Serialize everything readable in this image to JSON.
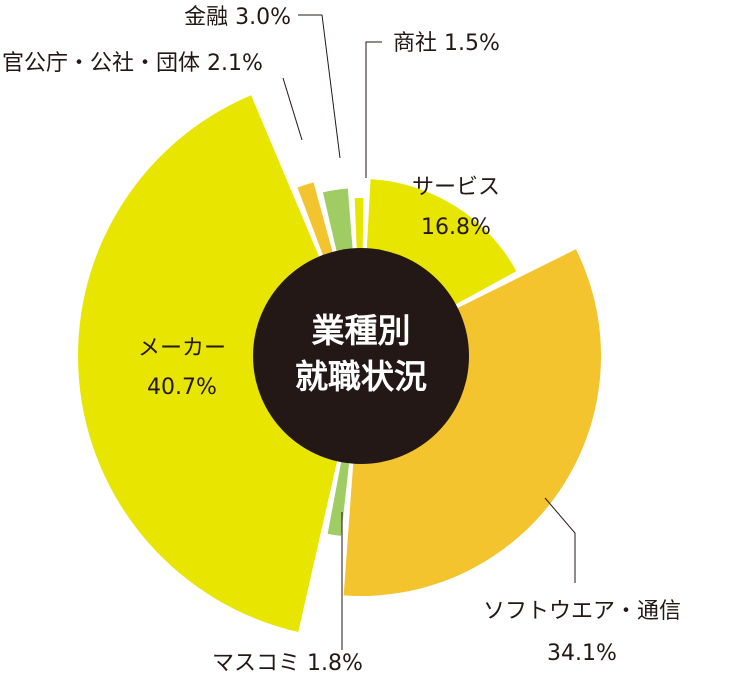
{
  "chart_data": {
    "type": "pie",
    "title": [
      "業種別",
      "就職状況"
    ],
    "slices": [
      {
        "name": "サービス",
        "value": 16.8,
        "value_label": "16.8%",
        "color": "#e8e500",
        "radius": 177
      },
      {
        "name": "ソフトウエア・通信",
        "value": 34.1,
        "value_label": "34.1%",
        "color": "#f3c42e",
        "radius": 240
      },
      {
        "name": "マスコミ",
        "value": 1.8,
        "value_label": "1.8%",
        "color": "#9fcc63",
        "radius": 181
      },
      {
        "name": "メーカー",
        "value": 40.7,
        "value_label": "40.7%",
        "color": "#e8e500",
        "radius": 283
      },
      {
        "name": "官公庁・公社・団体",
        "value": 2.1,
        "value_label": "2.1%",
        "color": "#f3c42e",
        "radius": 180
      },
      {
        "name": "金融",
        "value": 3.0,
        "value_label": "3.0%",
        "color": "#9fcc63",
        "radius": 168
      },
      {
        "name": "商社",
        "value": 1.5,
        "value_label": "1.5%",
        "color": "#e8e500",
        "radius": 158
      }
    ],
    "labels": {
      "service": {
        "name": "サービス",
        "value": "16.8%"
      },
      "software": "ソフトウエア・通信",
      "software_value": "34.1%",
      "media": "マスコミ 1.8%",
      "maker": {
        "name": "メーカー",
        "value": "40.7%"
      },
      "government": "官公庁・公社・団体 2.1%",
      "finance": "金融 3.0%",
      "trading": "商社 1.5%"
    },
    "colors": {
      "center": "#231815",
      "text": "#231815"
    }
  }
}
